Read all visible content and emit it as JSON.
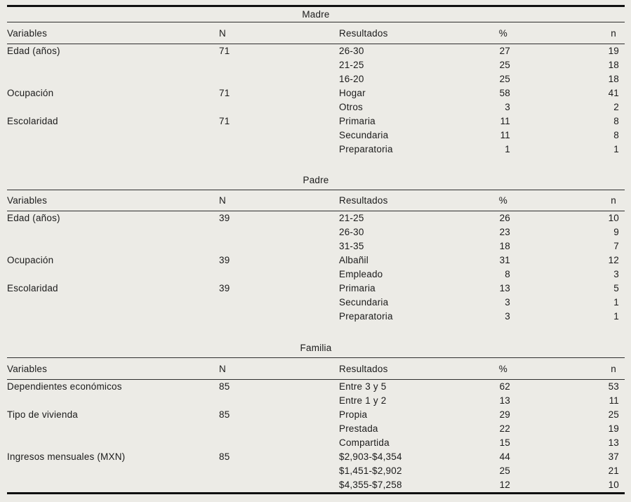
{
  "page": {
    "background_color": "#ecebe6",
    "text_color": "#1b1b1b",
    "thick_rule_color": "#101010",
    "thin_rule_color": "#2e2e2e"
  },
  "columns": [
    "Variables",
    "N",
    "Resultados",
    "%",
    "n"
  ],
  "sections": [
    {
      "title": "Madre",
      "rows": [
        [
          "Edad (años)",
          "71",
          "26-30",
          "27",
          "19"
        ],
        [
          "",
          "",
          "21-25",
          "25",
          "18"
        ],
        [
          "",
          "",
          "16-20",
          "25",
          "18"
        ],
        [
          "Ocupación",
          "71",
          "Hogar",
          "58",
          "41"
        ],
        [
          "",
          "",
          "Otros",
          "3",
          "2"
        ],
        [
          "Escolaridad",
          "71",
          "Primaria",
          "11",
          "8"
        ],
        [
          "",
          "",
          "Secundaria",
          "11",
          "8"
        ],
        [
          "",
          "",
          "Preparatoria",
          "1",
          "1"
        ]
      ]
    },
    {
      "title": "Padre",
      "rows": [
        [
          "Edad (años)",
          "39",
          "21-25",
          "26",
          "10"
        ],
        [
          "",
          "",
          "26-30",
          "23",
          "9"
        ],
        [
          "",
          "",
          "31-35",
          "18",
          "7"
        ],
        [
          "Ocupación",
          "39",
          "Albañil",
          "31",
          "12"
        ],
        [
          "",
          "",
          "Empleado",
          "8",
          "3"
        ],
        [
          "Escolaridad",
          "39",
          "Primaria",
          "13",
          "5"
        ],
        [
          "",
          "",
          "Secundaria",
          "3",
          "1"
        ],
        [
          "",
          "",
          "Preparatoria",
          "3",
          "1"
        ]
      ]
    },
    {
      "title": "Familia",
      "rows": [
        [
          "Dependientes económicos",
          "85",
          "Entre 3 y 5",
          "62",
          "53"
        ],
        [
          "",
          "",
          "Entre 1 y 2",
          "13",
          "11"
        ],
        [
          "Tipo de vivienda",
          "85",
          "Propia",
          "29",
          "25"
        ],
        [
          "",
          "",
          "Prestada",
          "22",
          "19"
        ],
        [
          "",
          "",
          "Compartida",
          "15",
          "13"
        ],
        [
          "Ingresos mensuales (MXN)",
          "85",
          "$2,903-$4,354",
          "44",
          "37"
        ],
        [
          "",
          "",
          "$1,451-$2,902",
          "25",
          "21"
        ],
        [
          "",
          "",
          "$4,355-$7,258",
          "12",
          "10"
        ]
      ]
    }
  ]
}
